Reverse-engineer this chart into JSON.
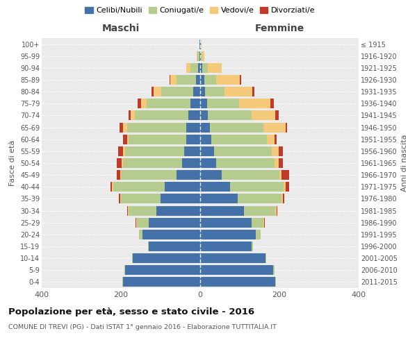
{
  "age_groups": [
    "0-4",
    "5-9",
    "10-14",
    "15-19",
    "20-24",
    "25-29",
    "30-34",
    "35-39",
    "40-44",
    "45-49",
    "50-54",
    "55-59",
    "60-64",
    "65-69",
    "70-74",
    "75-79",
    "80-84",
    "85-89",
    "90-94",
    "95-99",
    "100+"
  ],
  "birth_years": [
    "2011-2015",
    "2006-2010",
    "2001-2005",
    "1996-2000",
    "1991-1995",
    "1986-1990",
    "1981-1985",
    "1976-1980",
    "1971-1975",
    "1966-1970",
    "1961-1965",
    "1956-1960",
    "1951-1955",
    "1946-1950",
    "1941-1945",
    "1936-1940",
    "1931-1935",
    "1926-1930",
    "1921-1925",
    "1916-1920",
    "≤ 1915"
  ],
  "males": {
    "celibi": [
      195,
      190,
      170,
      130,
      145,
      130,
      110,
      100,
      90,
      60,
      45,
      40,
      35,
      35,
      30,
      25,
      18,
      10,
      5,
      2,
      1
    ],
    "coniugati": [
      2,
      2,
      2,
      2,
      10,
      30,
      70,
      100,
      130,
      140,
      150,
      150,
      145,
      150,
      135,
      110,
      80,
      50,
      20,
      5,
      1
    ],
    "vedovi": [
      0,
      0,
      0,
      0,
      0,
      2,
      2,
      2,
      2,
      2,
      3,
      4,
      5,
      10,
      10,
      15,
      20,
      15,
      10,
      2,
      0
    ],
    "divorziati": [
      0,
      0,
      0,
      0,
      0,
      2,
      2,
      3,
      5,
      8,
      13,
      13,
      10,
      8,
      5,
      8,
      5,
      3,
      0,
      0,
      0
    ]
  },
  "females": {
    "nubili": [
      190,
      185,
      165,
      130,
      140,
      130,
      110,
      95,
      75,
      55,
      40,
      35,
      28,
      25,
      20,
      18,
      12,
      10,
      5,
      2,
      1
    ],
    "coniugate": [
      2,
      2,
      2,
      3,
      12,
      30,
      80,
      110,
      135,
      145,
      148,
      145,
      140,
      135,
      110,
      80,
      50,
      30,
      15,
      3,
      1
    ],
    "vedove": [
      0,
      0,
      0,
      0,
      0,
      2,
      3,
      3,
      5,
      5,
      10,
      18,
      20,
      55,
      60,
      80,
      70,
      60,
      35,
      5,
      1
    ],
    "divorziate": [
      0,
      0,
      0,
      0,
      0,
      2,
      2,
      5,
      10,
      20,
      10,
      10,
      5,
      5,
      8,
      8,
      5,
      3,
      0,
      0,
      0
    ]
  },
  "colors": {
    "celibi": "#4472a8",
    "coniugati": "#b5cc8e",
    "vedovi": "#f5c97a",
    "divorziati": "#c0392b"
  },
  "title": "Popolazione per età, sesso e stato civile - 2016",
  "subtitle": "COMUNE DI TREVI (PG) - Dati ISTAT 1° gennaio 2016 - Elaborazione TUTTITALIA.IT",
  "xlabel_left": "Maschi",
  "xlabel_right": "Femmine",
  "ylabel_left": "Fasce di età",
  "ylabel_right": "Anni di nascita",
  "xlim": 400,
  "background_color": "#ffffff",
  "plot_bg_color": "#ebebeb",
  "legend_labels": [
    "Celibi/Nubili",
    "Coniugati/e",
    "Vedovi/e",
    "Divorziati/e"
  ]
}
